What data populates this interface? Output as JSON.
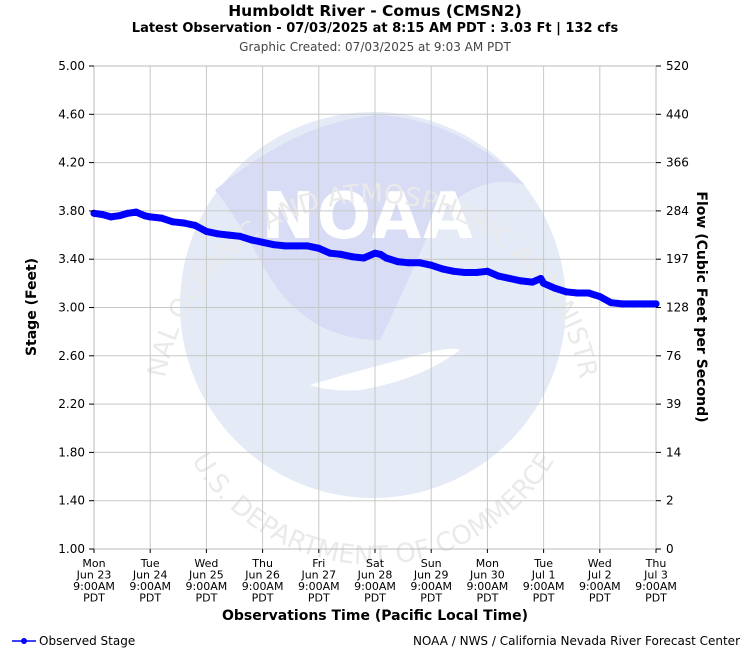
{
  "header": {
    "title": "Humboldt River - Comus (CMSN2)",
    "subtitle": "Latest Observation - 07/03/2025 at 8:15 AM PDT : 3.03 Ft | 132 cfs",
    "created": "Graphic Created: 07/03/2025 at 9:03 AM PDT"
  },
  "watermark": {
    "logo_text": "NOAA",
    "ring_top": "NATIONAL OCEANIC AND ATMOSPHERIC ADMINISTRATION",
    "ring_bottom": "U.S. DEPARTMENT OF COMMERCE"
  },
  "legend": {
    "label": "Observed Stage",
    "color": "#0000ff"
  },
  "footer": {
    "credit": "NOAA / NWS / California Nevada River Forecast Center"
  },
  "chart_data": {
    "type": "line",
    "xlabel": "Observations Time (Pacific Local Time)",
    "ylabel": "Stage (Feet)",
    "y2label": "Flow (Cubic Feet per Second)",
    "ylim": [
      1.0,
      5.0
    ],
    "yticks": [
      "1.00",
      "1.40",
      "1.80",
      "2.20",
      "2.60",
      "3.00",
      "3.40",
      "3.80",
      "4.20",
      "4.60",
      "5.00"
    ],
    "y2ticks": [
      "0",
      "2",
      "14",
      "39",
      "76",
      "128",
      "197",
      "284",
      "366",
      "440",
      "520"
    ],
    "xlim_days": [
      0,
      10
    ],
    "xticks": [
      [
        "Mon",
        "Jun 23",
        "9:00AM",
        "PDT"
      ],
      [
        "Tue",
        "Jun 24",
        "9:00AM",
        "PDT"
      ],
      [
        "Wed",
        "Jun 25",
        "9:00AM",
        "PDT"
      ],
      [
        "Thu",
        "Jun 26",
        "9:00AM",
        "PDT"
      ],
      [
        "Fri",
        "Jun 27",
        "9:00AM",
        "PDT"
      ],
      [
        "Sat",
        "Jun 28",
        "9:00AM",
        "PDT"
      ],
      [
        "Sun",
        "Jun 29",
        "9:00AM",
        "PDT"
      ],
      [
        "Mon",
        "Jun 30",
        "9:00AM",
        "PDT"
      ],
      [
        "Tue",
        "Jul 1",
        "9:00AM",
        "PDT"
      ],
      [
        "Wed",
        "Jul 2",
        "9:00AM",
        "PDT"
      ],
      [
        "Thu",
        "Jul 3",
        "9:00AM",
        "PDT"
      ]
    ],
    "grid": true,
    "series": [
      {
        "name": "Observed Stage",
        "color": "#0000ff",
        "x": [
          0.0,
          0.15,
          0.3,
          0.45,
          0.6,
          0.75,
          0.9,
          1.0,
          1.2,
          1.4,
          1.6,
          1.8,
          2.0,
          2.2,
          2.4,
          2.6,
          2.8,
          3.0,
          3.2,
          3.4,
          3.6,
          3.8,
          4.0,
          4.2,
          4.4,
          4.6,
          4.8,
          5.0,
          5.1,
          5.2,
          5.4,
          5.6,
          5.8,
          6.0,
          6.2,
          6.4,
          6.6,
          6.8,
          7.0,
          7.2,
          7.4,
          7.6,
          7.8,
          7.95,
          8.0,
          8.2,
          8.4,
          8.6,
          8.8,
          9.0,
          9.2,
          9.4,
          9.6,
          9.8,
          10.0
        ],
        "y": [
          3.78,
          3.77,
          3.75,
          3.76,
          3.78,
          3.79,
          3.76,
          3.75,
          3.74,
          3.71,
          3.7,
          3.68,
          3.63,
          3.61,
          3.6,
          3.59,
          3.56,
          3.54,
          3.52,
          3.51,
          3.51,
          3.51,
          3.49,
          3.45,
          3.44,
          3.42,
          3.41,
          3.45,
          3.44,
          3.41,
          3.38,
          3.37,
          3.37,
          3.35,
          3.32,
          3.3,
          3.29,
          3.29,
          3.3,
          3.26,
          3.24,
          3.22,
          3.21,
          3.24,
          3.2,
          3.16,
          3.13,
          3.12,
          3.12,
          3.09,
          3.04,
          3.03,
          3.03,
          3.03,
          3.03
        ]
      }
    ]
  }
}
